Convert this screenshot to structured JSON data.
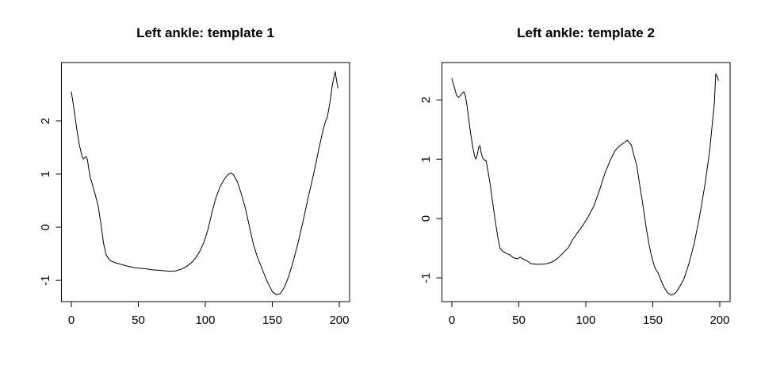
{
  "figure": {
    "background": "#ffffff",
    "line_color": "#000000",
    "text_color": "#000000"
  },
  "chart_data": [
    {
      "type": "line",
      "title": "Left ankle: template 1",
      "xlabel": "",
      "ylabel": "",
      "x_ticks": [
        0,
        50,
        100,
        150,
        200
      ],
      "y_ticks": [
        -1,
        0,
        1,
        2
      ],
      "xlim": [
        -7.4,
        207.7
      ],
      "ylim": [
        -1.4,
        3.1
      ],
      "grid": false,
      "legend": false,
      "box": true,
      "line_color": "#000000",
      "series": [
        {
          "name": "template 1",
          "x": [
            0,
            2,
            4,
            6,
            8,
            9,
            10,
            11,
            12,
            13,
            14,
            16,
            18,
            20,
            22,
            24,
            26,
            28,
            30,
            33,
            36,
            40,
            45,
            50,
            55,
            60,
            65,
            70,
            74,
            78,
            82,
            86,
            90,
            93,
            96,
            99,
            102,
            105,
            108,
            111,
            114,
            117,
            119,
            121,
            124,
            127,
            130,
            133,
            136,
            139,
            142,
            146,
            150,
            153,
            156,
            159,
            162,
            165,
            169,
            173,
            177,
            181,
            185,
            188,
            190,
            191,
            193,
            195,
            197,
            198,
            199
          ],
          "y": [
            2.55,
            2.22,
            1.85,
            1.55,
            1.33,
            1.28,
            1.31,
            1.33,
            1.27,
            1.1,
            0.95,
            0.78,
            0.6,
            0.4,
            0.08,
            -0.3,
            -0.52,
            -0.6,
            -0.64,
            -0.67,
            -0.69,
            -0.72,
            -0.75,
            -0.77,
            -0.78,
            -0.8,
            -0.81,
            -0.82,
            -0.83,
            -0.82,
            -0.79,
            -0.74,
            -0.66,
            -0.57,
            -0.45,
            -0.28,
            -0.04,
            0.28,
            0.56,
            0.76,
            0.9,
            0.99,
            1.02,
            0.99,
            0.85,
            0.62,
            0.35,
            0.0,
            -0.33,
            -0.57,
            -0.76,
            -1.01,
            -1.21,
            -1.27,
            -1.25,
            -1.13,
            -0.94,
            -0.7,
            -0.32,
            0.12,
            0.58,
            1.02,
            1.5,
            1.84,
            2.02,
            2.06,
            2.35,
            2.7,
            2.93,
            2.76,
            2.62
          ]
        }
      ]
    },
    {
      "type": "line",
      "title": "Left ankle: template 2",
      "xlabel": "",
      "ylabel": "",
      "x_ticks": [
        0,
        50,
        100,
        150,
        200
      ],
      "y_ticks": [
        -1,
        0,
        1,
        2
      ],
      "xlim": [
        -7.4,
        207.7
      ],
      "ylim": [
        -1.4,
        2.63
      ],
      "grid": false,
      "legend": false,
      "box": true,
      "line_color": "#000000",
      "series": [
        {
          "name": "template 2",
          "x": [
            0,
            2,
            3.5,
            5,
            6.5,
            8,
            9,
            10,
            11.5,
            13.5,
            15.5,
            17,
            18,
            19,
            20,
            21,
            22,
            23,
            24,
            25.5,
            27,
            28.5,
            30,
            32,
            34,
            36,
            38,
            40,
            43,
            46,
            49,
            51,
            53,
            56,
            59,
            63,
            67,
            71,
            75,
            79,
            83,
            87,
            90,
            94,
            98,
            102,
            106,
            110,
            114,
            118,
            122,
            125,
            128,
            131,
            134,
            136,
            138,
            140,
            143,
            145,
            147,
            149,
            151,
            152,
            154,
            156,
            158,
            161,
            164,
            167,
            169,
            173,
            177,
            181,
            185,
            189,
            192.5,
            194.5,
            196,
            197,
            198,
            199
          ],
          "y": [
            2.36,
            2.2,
            2.08,
            2.04,
            2.08,
            2.12,
            2.14,
            2.08,
            1.88,
            1.52,
            1.22,
            1.05,
            1.0,
            1.08,
            1.2,
            1.23,
            1.1,
            1.02,
            0.99,
            0.98,
            0.8,
            0.59,
            0.35,
            0.02,
            -0.28,
            -0.5,
            -0.55,
            -0.58,
            -0.61,
            -0.66,
            -0.68,
            -0.65,
            -0.68,
            -0.71,
            -0.76,
            -0.77,
            -0.77,
            -0.76,
            -0.73,
            -0.67,
            -0.58,
            -0.49,
            -0.36,
            -0.23,
            -0.11,
            0.04,
            0.21,
            0.46,
            0.75,
            0.97,
            1.15,
            1.22,
            1.27,
            1.32,
            1.24,
            1.06,
            0.9,
            0.6,
            0.17,
            -0.14,
            -0.41,
            -0.63,
            -0.79,
            -0.85,
            -0.92,
            -1.03,
            -1.14,
            -1.25,
            -1.29,
            -1.25,
            -1.19,
            -1.03,
            -0.76,
            -0.41,
            0.04,
            0.58,
            1.15,
            1.62,
            1.95,
            2.44,
            2.4,
            2.33
          ]
        }
      ]
    }
  ]
}
